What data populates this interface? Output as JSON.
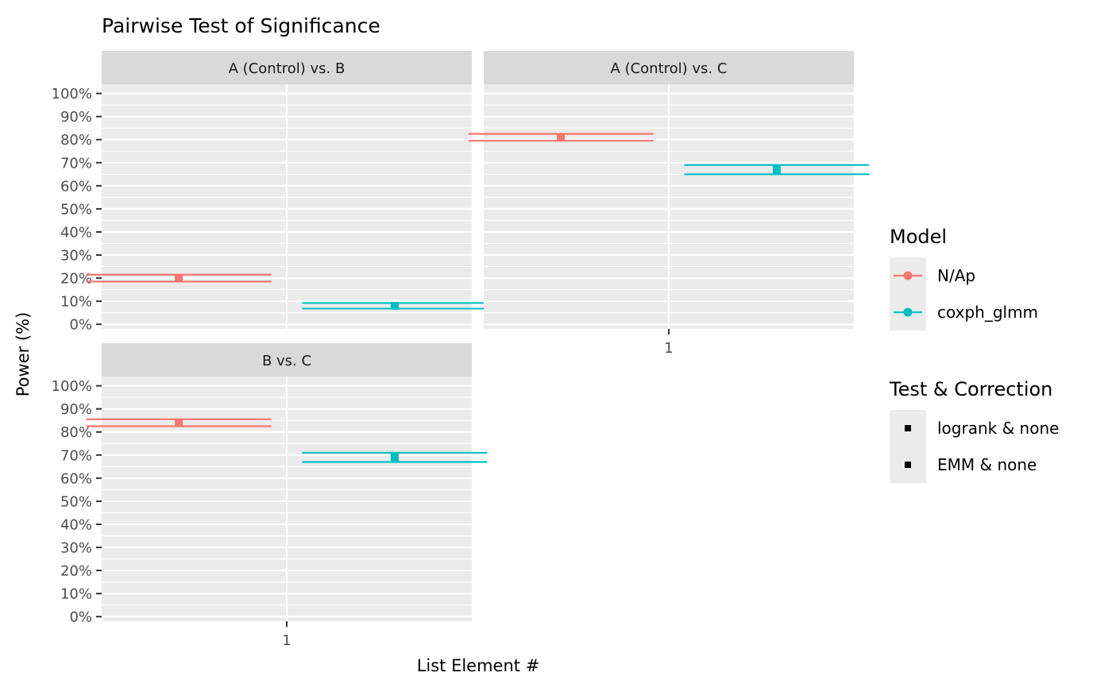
{
  "chart_data": {
    "type": "errorbar",
    "title": "Pairwise Test of Significance",
    "xlabel": "List Element #",
    "ylabel": "Power (%)",
    "ylim": [
      -2,
      104
    ],
    "yticks": [
      0,
      10,
      20,
      30,
      40,
      50,
      60,
      70,
      80,
      90,
      100
    ],
    "ytick_labels": [
      "0%",
      "10%",
      "20%",
      "30%",
      "40%",
      "50%",
      "60%",
      "70%",
      "80%",
      "90%",
      "100%"
    ],
    "xticks": [
      1
    ],
    "xtick_labels": [
      "1"
    ],
    "panels": [
      {
        "label": "A (Control) vs. B",
        "points": [
          {
            "model": "N/Ap",
            "test": "logrank & none",
            "x": 1,
            "y": 20,
            "lower": 18.5,
            "upper": 21.5
          },
          {
            "model": "coxph_glmm",
            "test": "EMM & none",
            "x": 1,
            "y": 8,
            "lower": 6.8,
            "upper": 9.2
          }
        ]
      },
      {
        "label": "A (Control) vs. C",
        "points": [
          {
            "model": "N/Ap",
            "test": "logrank & none",
            "x": 1,
            "y": 81,
            "lower": 79.5,
            "upper": 82.5
          },
          {
            "model": "coxph_glmm",
            "test": "EMM & none",
            "x": 1,
            "y": 67,
            "lower": 65,
            "upper": 69
          }
        ]
      },
      {
        "label": "B vs. C",
        "points": [
          {
            "model": "N/Ap",
            "test": "logrank & none",
            "x": 1,
            "y": 84,
            "lower": 82.5,
            "upper": 85.5
          },
          {
            "model": "coxph_glmm",
            "test": "EMM & none",
            "x": 1,
            "y": 69,
            "lower": 67,
            "upper": 71
          }
        ]
      }
    ],
    "legends": [
      {
        "title": "Model",
        "entries": [
          {
            "label": "N/Ap",
            "color": "#F8766D"
          },
          {
            "label": "coxph_glmm",
            "color": "#00BFC4"
          }
        ]
      },
      {
        "title": "Test & Correction",
        "entries": [
          {
            "label": "logrank & none"
          },
          {
            "label": "EMM & none"
          }
        ]
      }
    ]
  },
  "colors": {
    "panel_bg": "#EBEBEB",
    "strip_bg": "#D9D9D9",
    "grid": "#FFFFFF",
    "tick_text": "#4D4D4D",
    "axis_tick": "#333333",
    "text": "#000000"
  }
}
